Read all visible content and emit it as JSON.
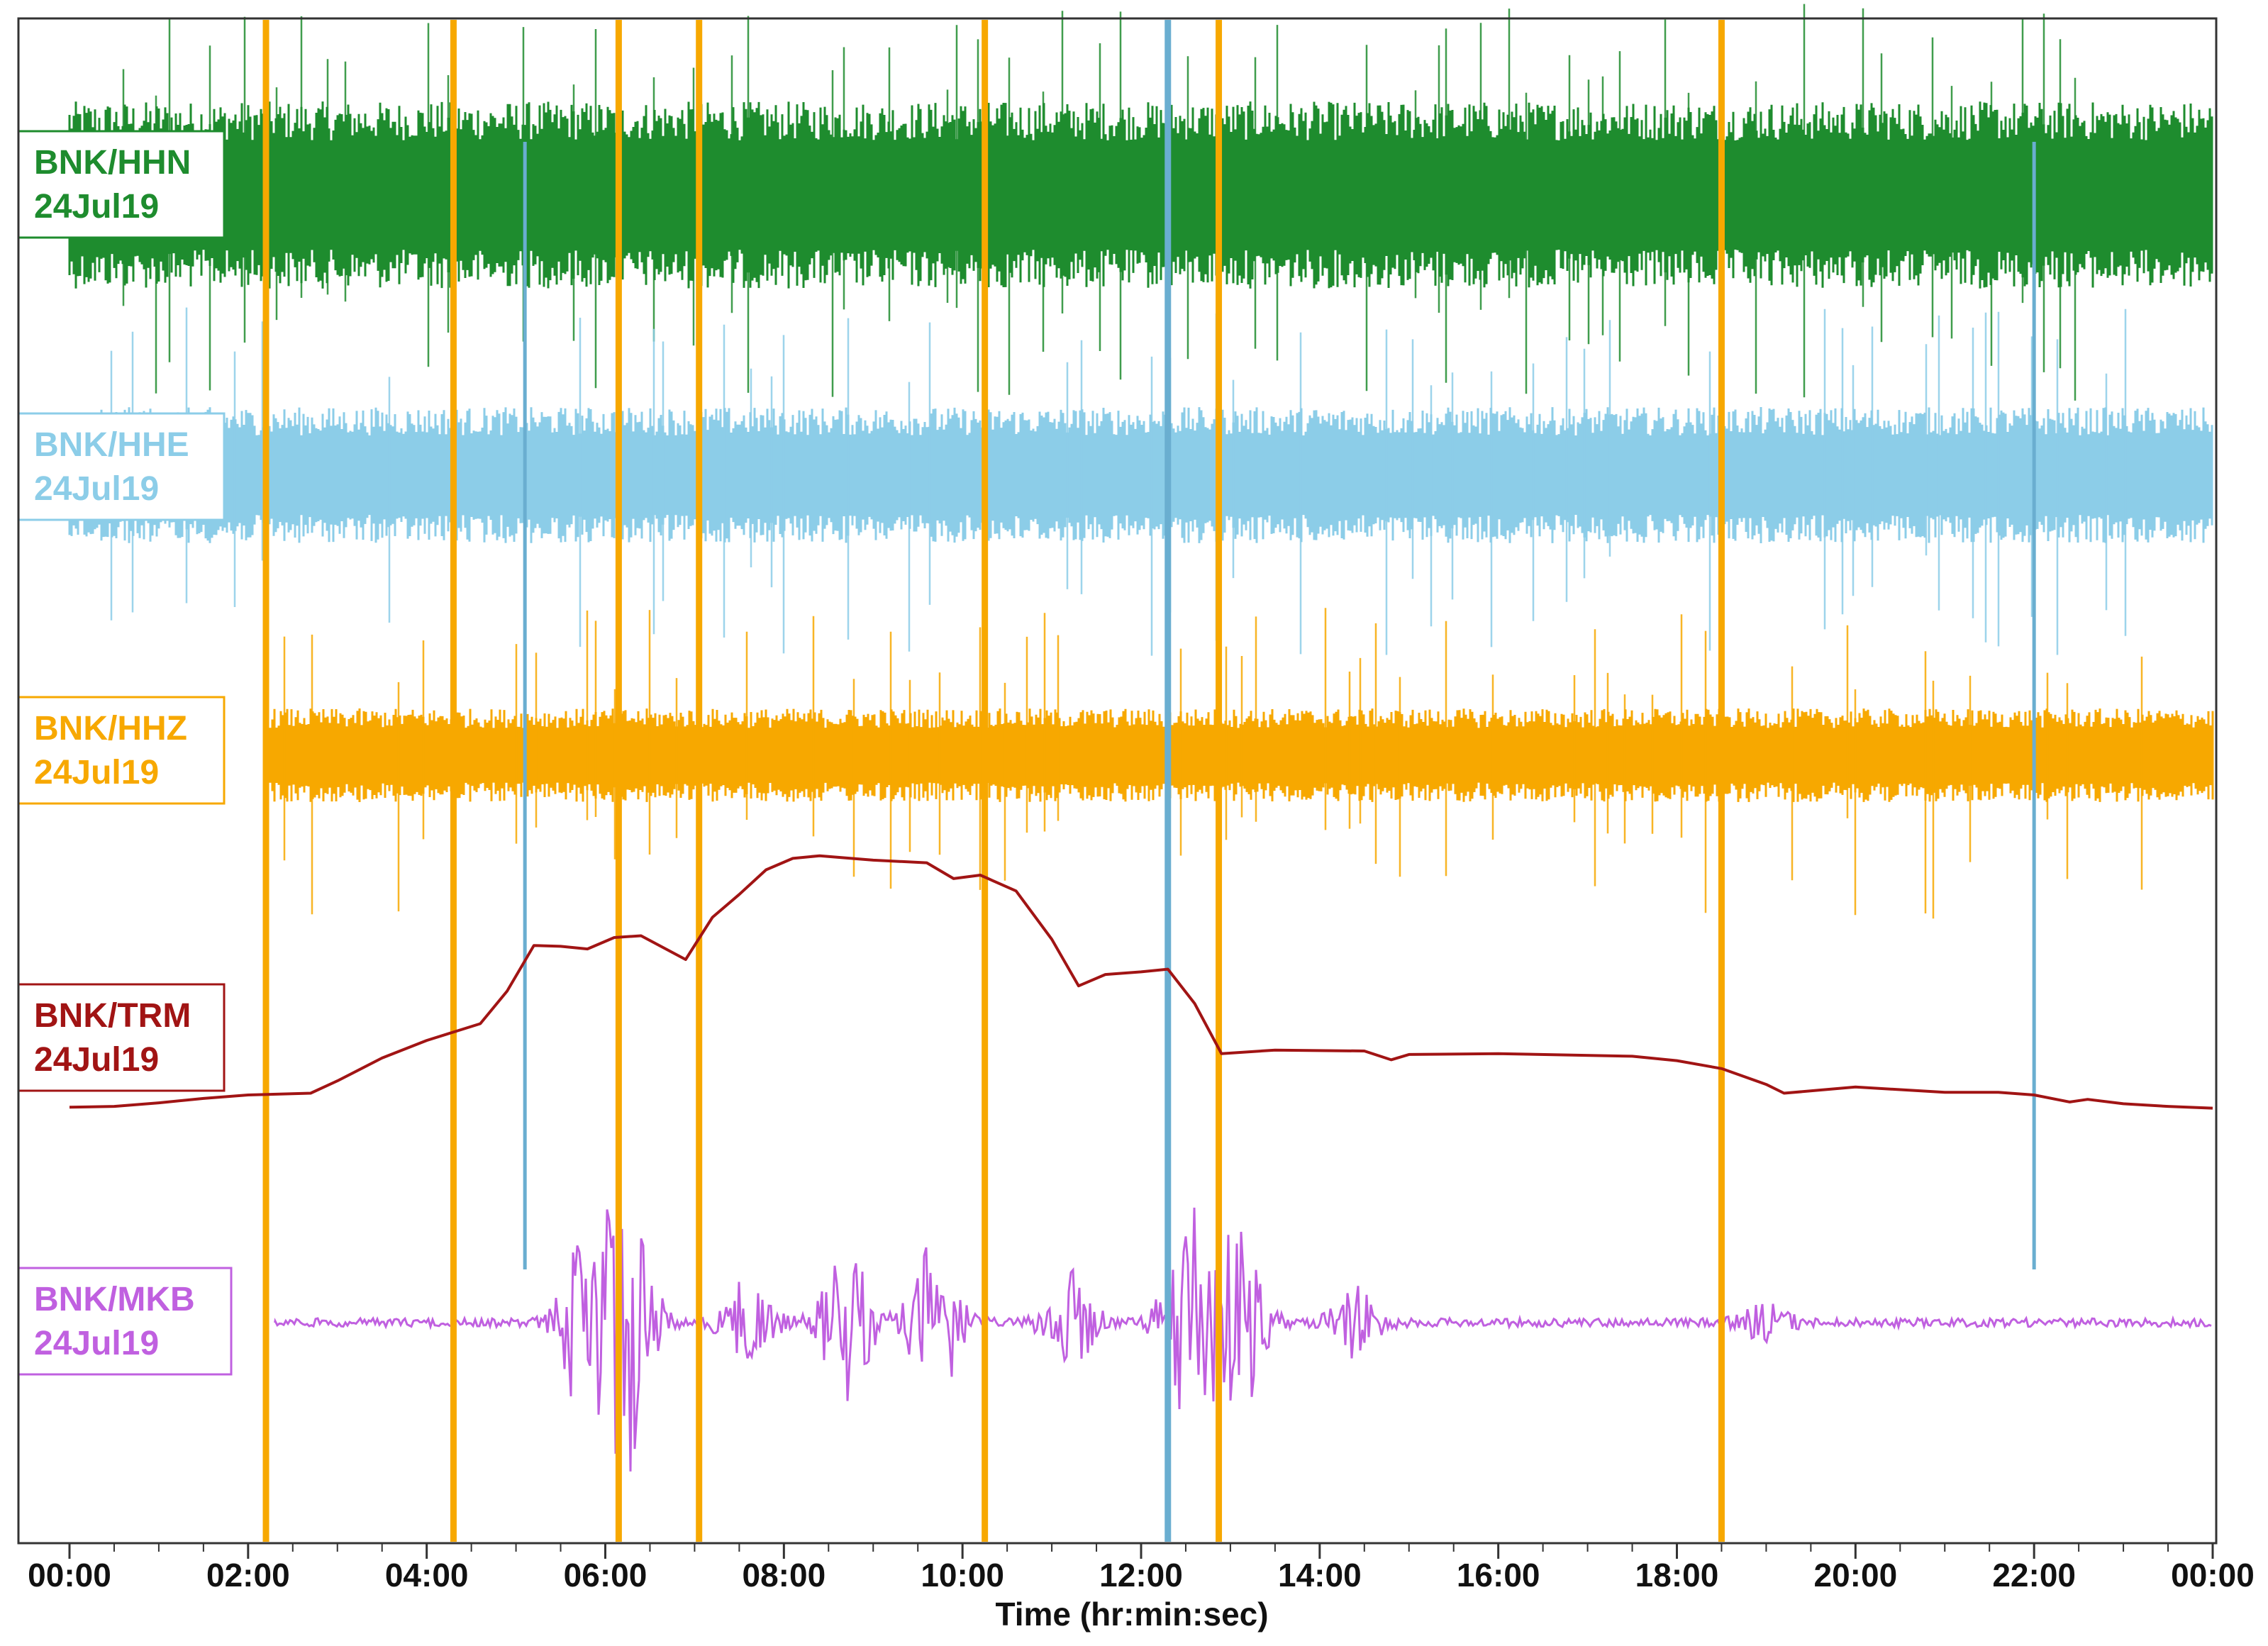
{
  "chart_data": {
    "type": "line",
    "title": "",
    "xlabel": "Time (hr:min:sec)",
    "ylabel": "",
    "xlim": [
      0,
      24
    ],
    "x_ticks": [
      0,
      2,
      4,
      6,
      8,
      10,
      12,
      14,
      16,
      18,
      20,
      22,
      24
    ],
    "x_tick_labels": [
      "00:00",
      "02:00",
      "04:00",
      "06:00",
      "08:00",
      "10:00",
      "12:00",
      "14:00",
      "16:00",
      "18:00",
      "20:00",
      "22:00",
      "00:00"
    ],
    "grid": false,
    "legend": "inline-left",
    "channels": [
      {
        "station": "BNK/HHN",
        "date": "24Jul19",
        "color": "#1e8c2e",
        "kind": "noise"
      },
      {
        "station": "BNK/HHE",
        "date": "24Jul19",
        "color": "#8ccde8",
        "kind": "noise"
      },
      {
        "station": "BNK/HHZ",
        "date": "24Jul19",
        "color": "#f7a800",
        "kind": "noise"
      },
      {
        "station": "BNK/TRM",
        "date": "24Jul19",
        "color": "#a11414",
        "kind": "line"
      },
      {
        "station": "BNK/MKB",
        "date": "24Jul19",
        "color": "#c060e0",
        "kind": "bursts"
      }
    ],
    "series": [
      {
        "name": "BNK/TRM",
        "x": [
          0,
          0.5,
          1,
          1.5,
          2,
          2.7,
          3,
          3.5,
          4,
          4.6,
          4.9,
          5.2,
          5.5,
          5.8,
          6.1,
          6.4,
          6.9,
          7.2,
          7.5,
          7.8,
          8.1,
          8.4,
          9.0,
          9.6,
          9.9,
          10.2,
          10.6,
          11.0,
          11.3,
          11.6,
          12.0,
          12.3,
          12.6,
          12.9,
          13.5,
          14.5,
          14.8,
          15.0,
          16.0,
          17.5,
          18.0,
          18.5,
          19.0,
          19.2,
          20.0,
          21.0,
          21.6,
          22.0,
          22.4,
          22.6,
          23.0,
          23.5,
          24.0
        ],
        "values": [
          3.2,
          3.3,
          3.7,
          4.2,
          4.6,
          4.8,
          6.2,
          8.8,
          10.8,
          12.7,
          16.4,
          21.6,
          21.5,
          21.2,
          22.5,
          22.7,
          20.0,
          24.8,
          27.4,
          30.2,
          31.5,
          31.8,
          31.3,
          31.0,
          29.2,
          29.6,
          27.8,
          22.3,
          17.0,
          18.3,
          18.6,
          18.9,
          15.0,
          9.3,
          9.7,
          9.6,
          8.6,
          9.2,
          9.3,
          9.0,
          8.5,
          7.6,
          5.8,
          4.8,
          5.5,
          4.9,
          4.9,
          4.6,
          3.8,
          4.1,
          3.6,
          3.3,
          3.1
        ]
      }
    ],
    "annotations": [
      {
        "type": "spike",
        "x": 2.2,
        "color": "#f7a800",
        "extent": "full"
      },
      {
        "type": "spike",
        "x": 4.3,
        "color": "#f7a800",
        "extent": "full"
      },
      {
        "type": "spike",
        "x": 6.15,
        "color": "#f7a800",
        "extent": "full"
      },
      {
        "type": "spike",
        "x": 7.05,
        "color": "#f7a800",
        "extent": "full"
      },
      {
        "type": "spike",
        "x": 10.25,
        "color": "#f7a800",
        "extent": "full"
      },
      {
        "type": "spike",
        "x": 12.87,
        "color": "#f7a800",
        "extent": "full"
      },
      {
        "type": "spike",
        "x": 18.5,
        "color": "#f7a800",
        "extent": "full"
      },
      {
        "type": "spike",
        "x": 12.3,
        "color": "#6aaed0",
        "extent": "full"
      },
      {
        "type": "spike",
        "x": 5.1,
        "color": "#6aaed0",
        "extent": "partial"
      },
      {
        "type": "spike",
        "x": 22.0,
        "color": "#6aaed0",
        "extent": "partial"
      }
    ]
  }
}
